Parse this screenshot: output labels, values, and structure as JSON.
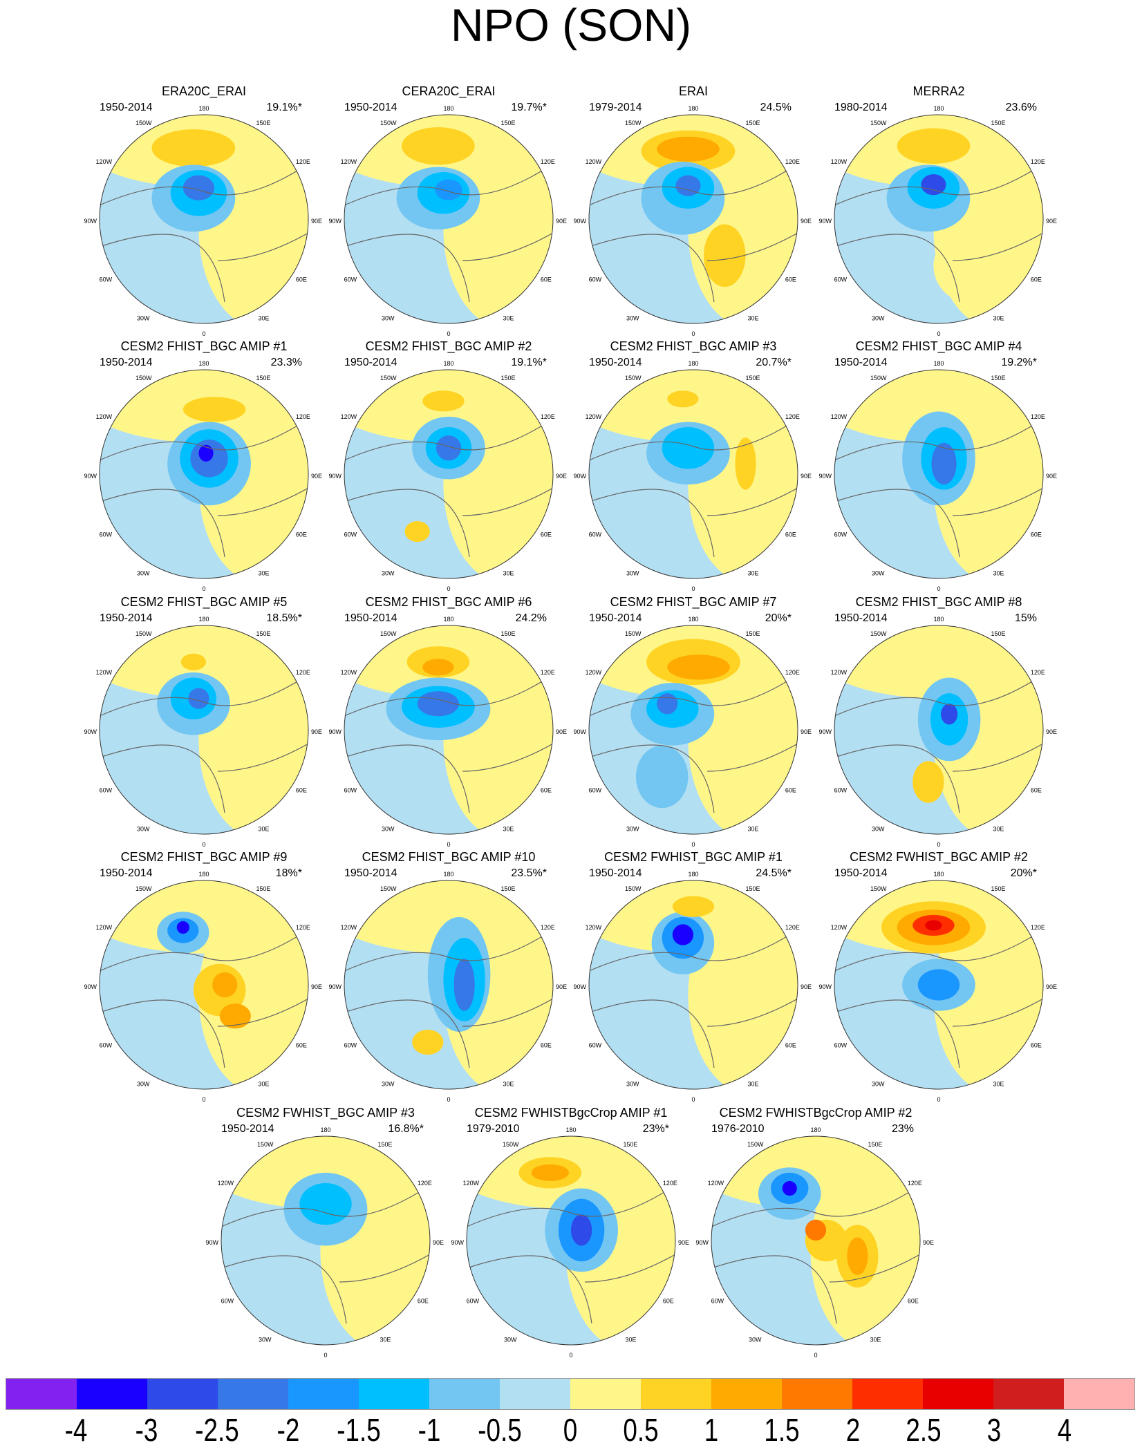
{
  "chart_data": {
    "type": "heatmap",
    "title": "NPO (SON)",
    "projection": "north polar stereographic",
    "longitude_labels": [
      "180",
      "150W",
      "150E",
      "120W",
      "120E",
      "90W",
      "90E",
      "60W",
      "60E",
      "30W",
      "30E",
      "0"
    ],
    "panels": [
      {
        "title": "ERA20C_ERAI",
        "period": "1950-2014",
        "variance": "19.1%*"
      },
      {
        "title": "CERA20C_ERAI",
        "period": "1950-2014",
        "variance": "19.7%*"
      },
      {
        "title": "ERAI",
        "period": "1979-2014",
        "variance": "24.5%"
      },
      {
        "title": "MERRA2",
        "period": "1980-2014",
        "variance": "23.6%"
      },
      {
        "title": "CESM2 FHIST_BGC AMIP #1",
        "period": "1950-2014",
        "variance": "23.3%"
      },
      {
        "title": "CESM2 FHIST_BGC AMIP #2",
        "period": "1950-2014",
        "variance": "19.1%*"
      },
      {
        "title": "CESM2 FHIST_BGC AMIP #3",
        "period": "1950-2014",
        "variance": "20.7%*"
      },
      {
        "title": "CESM2 FHIST_BGC AMIP #4",
        "period": "1950-2014",
        "variance": "19.2%*"
      },
      {
        "title": "CESM2 FHIST_BGC AMIP #5",
        "period": "1950-2014",
        "variance": "18.5%*"
      },
      {
        "title": "CESM2 FHIST_BGC AMIP #6",
        "period": "1950-2014",
        "variance": "24.2%"
      },
      {
        "title": "CESM2 FHIST_BGC AMIP #7",
        "period": "1950-2014",
        "variance": "20%*"
      },
      {
        "title": "CESM2 FHIST_BGC AMIP #8",
        "period": "1950-2014",
        "variance": "15%"
      },
      {
        "title": "CESM2 FHIST_BGC AMIP #9",
        "period": "1950-2014",
        "variance": "18%*"
      },
      {
        "title": "CESM2 FHIST_BGC AMIP #10",
        "period": "1950-2014",
        "variance": "23.5%*"
      },
      {
        "title": "CESM2 FWHIST_BGC AMIP #1",
        "period": "1950-2014",
        "variance": "24.5%*"
      },
      {
        "title": "CESM2 FWHIST_BGC AMIP #2",
        "period": "1950-2014",
        "variance": "20%*"
      },
      {
        "title": "CESM2 FWHIST_BGC AMIP #3",
        "period": "1950-2014",
        "variance": "16.8%*"
      },
      {
        "title": "CESM2 FWHISTBgcCrop AMIP #1",
        "period": "1979-2010",
        "variance": "23%*"
      },
      {
        "title": "CESM2 FWHISTBgcCrop AMIP #2",
        "period": "1976-2010",
        "variance": "23%"
      }
    ],
    "colorbar": {
      "labels": [
        "-4",
        "-3",
        "-2.5",
        "-2",
        "-1.5",
        "-1",
        "-0.5",
        "0",
        "0.5",
        "1",
        "1.5",
        "2",
        "2.5",
        "3",
        "4"
      ],
      "colors": [
        "#8221f0",
        "#1a00ff",
        "#2e4ae8",
        "#3778e8",
        "#1a96ff",
        "#00bfff",
        "#73c6f2",
        "#b3dff3",
        "#fff68a",
        "#ffd324",
        "#ffaa00",
        "#ff7800",
        "#ff2e00",
        "#e80000",
        "#d01e1e",
        "#ffb0b0"
      ]
    }
  }
}
